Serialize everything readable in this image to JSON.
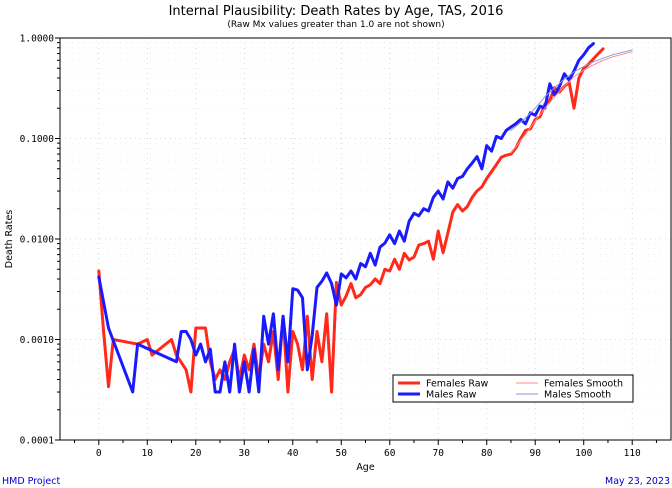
{
  "chart_data": {
    "type": "line",
    "title": "Internal Plausibility: Death Rates by Age, TAS, 2016",
    "subtitle": "(Raw Mx values greater than 1.0 are not shown)",
    "xlabel": "Age",
    "ylabel": "Death Rates",
    "xlim": [
      -8,
      118
    ],
    "ylim": [
      0.0001,
      1.0
    ],
    "y_scale": "log",
    "x_ticks": [
      "0",
      "10",
      "20",
      "30",
      "40",
      "50",
      "60",
      "70",
      "80",
      "90",
      "100",
      "110"
    ],
    "y_ticks": [
      "0.0001",
      "0.0010",
      "0.0100",
      "0.1000",
      "1.0000"
    ],
    "grid": true,
    "legend_position": "bottom-right",
    "series": [
      {
        "name": "Females Raw",
        "color": "#ff2a1a",
        "width": 3,
        "points": [
          [
            0,
            0.0048
          ],
          [
            1,
            0.0012
          ],
          [
            2,
            0.00034
          ],
          [
            3,
            0.001
          ],
          [
            8,
            0.0009
          ],
          [
            10,
            0.001
          ],
          [
            11,
            0.0007
          ],
          [
            15,
            0.001
          ],
          [
            16,
            0.0007
          ],
          [
            18,
            0.0005
          ],
          [
            19,
            0.0003
          ],
          [
            20,
            0.0013
          ],
          [
            22,
            0.0013
          ],
          [
            23,
            0.0006
          ],
          [
            24,
            0.0004
          ],
          [
            25,
            0.0005
          ],
          [
            26,
            0.0004
          ],
          [
            27,
            0.0006
          ],
          [
            28,
            0.0008
          ],
          [
            29,
            0.0004
          ],
          [
            30,
            0.0007
          ],
          [
            31,
            0.0005
          ],
          [
            32,
            0.0009
          ],
          [
            33,
            0.0004
          ],
          [
            34,
            0.0009
          ],
          [
            35,
            0.0006
          ],
          [
            36,
            0.0012
          ],
          [
            37,
            0.0004
          ],
          [
            38,
            0.0017
          ],
          [
            39,
            0.0003
          ],
          [
            40,
            0.0012
          ],
          [
            41,
            0.0009
          ],
          [
            42,
            0.0005
          ],
          [
            43,
            0.0017
          ],
          [
            44,
            0.0004
          ],
          [
            45,
            0.0012
          ],
          [
            46,
            0.0006
          ],
          [
            47,
            0.0018
          ],
          [
            48,
            0.0003
          ],
          [
            49,
            0.0037
          ],
          [
            50,
            0.0022
          ],
          [
            51,
            0.0027
          ],
          [
            52,
            0.0036
          ],
          [
            53,
            0.0026
          ],
          [
            54,
            0.0028
          ],
          [
            55,
            0.0033
          ],
          [
            56,
            0.0035
          ],
          [
            57,
            0.004
          ],
          [
            58,
            0.0036
          ],
          [
            59,
            0.005
          ],
          [
            60,
            0.0048
          ],
          [
            61,
            0.0063
          ],
          [
            62,
            0.005
          ],
          [
            63,
            0.0072
          ],
          [
            64,
            0.0062
          ],
          [
            65,
            0.0066
          ],
          [
            66,
            0.0087
          ],
          [
            67,
            0.009
          ],
          [
            68,
            0.0095
          ],
          [
            69,
            0.0063
          ],
          [
            70,
            0.012
          ],
          [
            71,
            0.0073
          ],
          [
            72,
            0.0115
          ],
          [
            73,
            0.0185
          ],
          [
            74,
            0.022
          ],
          [
            75,
            0.019
          ],
          [
            76,
            0.021
          ],
          [
            77,
            0.026
          ],
          [
            78,
            0.03
          ],
          [
            79,
            0.033
          ],
          [
            80,
            0.04
          ],
          [
            81,
            0.047
          ],
          [
            82,
            0.055
          ],
          [
            83,
            0.065
          ],
          [
            84,
            0.068
          ],
          [
            85,
            0.07
          ],
          [
            86,
            0.08
          ],
          [
            87,
            0.1
          ],
          [
            88,
            0.12
          ],
          [
            89,
            0.125
          ],
          [
            90,
            0.155
          ],
          [
            91,
            0.165
          ],
          [
            92,
            0.22
          ],
          [
            93,
            0.24
          ],
          [
            94,
            0.32
          ],
          [
            95,
            0.29
          ],
          [
            96,
            0.33
          ],
          [
            97,
            0.36
          ],
          [
            98,
            0.2
          ],
          [
            99,
            0.4
          ],
          [
            100,
            0.5
          ],
          [
            101,
            0.55
          ],
          [
            102,
            0.62
          ],
          [
            103,
            0.7
          ],
          [
            104,
            0.78
          ]
        ]
      },
      {
        "name": "Males Raw",
        "color": "#1a1aff",
        "width": 3,
        "points": [
          [
            0,
            0.0042
          ],
          [
            2,
            0.0013
          ],
          [
            7,
            0.0003
          ],
          [
            8,
            0.0009
          ],
          [
            16,
            0.0006
          ],
          [
            17,
            0.0012
          ],
          [
            18,
            0.0012
          ],
          [
            19,
            0.001
          ],
          [
            20,
            0.0007
          ],
          [
            21,
            0.0009
          ],
          [
            22,
            0.0006
          ],
          [
            23,
            0.0008
          ],
          [
            24,
            0.0003
          ],
          [
            25,
            0.0003
          ],
          [
            26,
            0.0006
          ],
          [
            27,
            0.0003
          ],
          [
            28,
            0.0009
          ],
          [
            29,
            0.0003
          ],
          [
            30,
            0.0006
          ],
          [
            31,
            0.0003
          ],
          [
            32,
            0.0008
          ],
          [
            33,
            0.0003
          ],
          [
            34,
            0.0017
          ],
          [
            35,
            0.0009
          ],
          [
            36,
            0.0018
          ],
          [
            37,
            0.0005
          ],
          [
            38,
            0.0017
          ],
          [
            39,
            0.0006
          ],
          [
            40,
            0.0032
          ],
          [
            41,
            0.0031
          ],
          [
            42,
            0.0026
          ],
          [
            43,
            0.0005
          ],
          [
            44,
            0.0011
          ],
          [
            45,
            0.0033
          ],
          [
            46,
            0.0038
          ],
          [
            47,
            0.0046
          ],
          [
            48,
            0.0036
          ],
          [
            49,
            0.0022
          ],
          [
            50,
            0.0045
          ],
          [
            51,
            0.0041
          ],
          [
            52,
            0.0048
          ],
          [
            53,
            0.004
          ],
          [
            54,
            0.0057
          ],
          [
            55,
            0.0053
          ],
          [
            56,
            0.0072
          ],
          [
            57,
            0.0055
          ],
          [
            58,
            0.0083
          ],
          [
            59,
            0.0091
          ],
          [
            60,
            0.011
          ],
          [
            61,
            0.009
          ],
          [
            62,
            0.012
          ],
          [
            63,
            0.0095
          ],
          [
            64,
            0.015
          ],
          [
            65,
            0.018
          ],
          [
            66,
            0.017
          ],
          [
            67,
            0.02
          ],
          [
            68,
            0.019
          ],
          [
            69,
            0.026
          ],
          [
            70,
            0.03
          ],
          [
            71,
            0.025
          ],
          [
            72,
            0.037
          ],
          [
            73,
            0.032
          ],
          [
            74,
            0.04
          ],
          [
            75,
            0.042
          ],
          [
            76,
            0.05
          ],
          [
            77,
            0.057
          ],
          [
            78,
            0.066
          ],
          [
            79,
            0.05
          ],
          [
            80,
            0.085
          ],
          [
            81,
            0.075
          ],
          [
            82,
            0.105
          ],
          [
            83,
            0.1
          ],
          [
            84,
            0.12
          ],
          [
            85,
            0.13
          ],
          [
            86,
            0.14
          ],
          [
            87,
            0.155
          ],
          [
            88,
            0.14
          ],
          [
            89,
            0.18
          ],
          [
            90,
            0.17
          ],
          [
            91,
            0.21
          ],
          [
            92,
            0.2
          ],
          [
            93,
            0.35
          ],
          [
            94,
            0.27
          ],
          [
            95,
            0.33
          ],
          [
            96,
            0.44
          ],
          [
            97,
            0.38
          ],
          [
            98,
            0.47
          ],
          [
            99,
            0.6
          ],
          [
            100,
            0.68
          ],
          [
            101,
            0.8
          ],
          [
            102,
            0.88
          ]
        ]
      },
      {
        "name": "Females Smooth",
        "color": "#ff8888",
        "width": 1,
        "points": [
          [
            85,
            0.072
          ],
          [
            88,
            0.11
          ],
          [
            90,
            0.15
          ],
          [
            92,
            0.2
          ],
          [
            94,
            0.26
          ],
          [
            96,
            0.33
          ],
          [
            98,
            0.41
          ],
          [
            100,
            0.48
          ],
          [
            102,
            0.54
          ],
          [
            104,
            0.6
          ],
          [
            106,
            0.65
          ],
          [
            108,
            0.69
          ],
          [
            110,
            0.73
          ]
        ]
      },
      {
        "name": "Males Smooth",
        "color": "#8899dd",
        "width": 1,
        "points": [
          [
            85,
            0.12
          ],
          [
            88,
            0.16
          ],
          [
            90,
            0.2
          ],
          [
            92,
            0.26
          ],
          [
            94,
            0.32
          ],
          [
            96,
            0.39
          ],
          [
            98,
            0.46
          ],
          [
            100,
            0.52
          ],
          [
            102,
            0.58
          ],
          [
            104,
            0.63
          ],
          [
            106,
            0.68
          ],
          [
            108,
            0.72
          ],
          [
            110,
            0.76
          ]
        ]
      }
    ]
  },
  "footer": {
    "left": "HMD Project",
    "right": "May 23, 2023"
  }
}
